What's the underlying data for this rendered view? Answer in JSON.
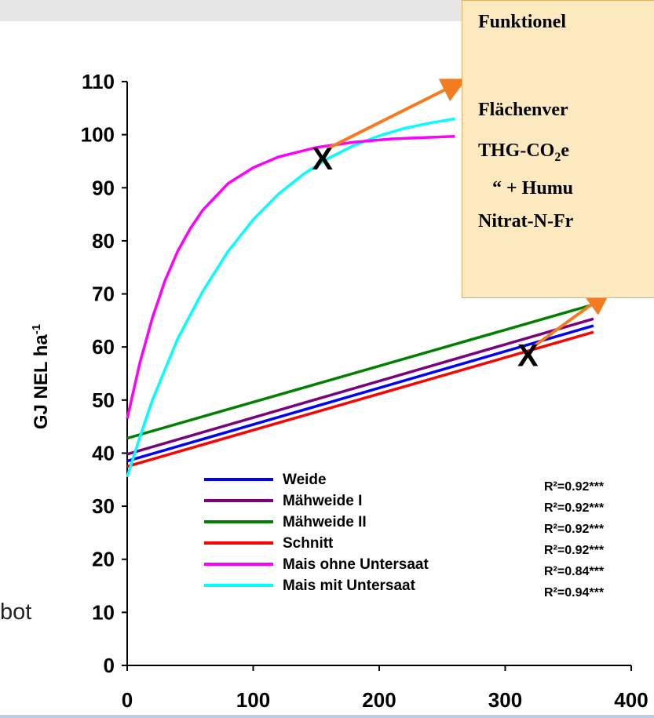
{
  "fragment_text": "bot",
  "info_box": {
    "lines": [
      "Funktionel",
      "Flächenver",
      "THG-CO",
      "2",
      "e",
      "“ + Humu",
      "Nitrat-N-Fr"
    ]
  },
  "markers": [
    "X",
    "X"
  ],
  "chart_data": {
    "type": "line",
    "title": "",
    "xlabel": "",
    "ylabel": "GJ NEL ha",
    "ylabel_sup": "-1",
    "xlim": [
      0,
      400
    ],
    "ylim": [
      0,
      110
    ],
    "x_ticks": [
      0,
      100,
      200,
      300,
      400
    ],
    "y_ticks": [
      0,
      10,
      20,
      30,
      40,
      50,
      60,
      70,
      80,
      90,
      100,
      110
    ],
    "grid": false,
    "legend_position": "bottom-center",
    "series": [
      {
        "name": "Weide",
        "color": "#0000ff",
        "r2": "R²=0.92***",
        "x": [
          0,
          370
        ],
        "y": [
          38.5,
          64
        ]
      },
      {
        "name": "Mähweide I",
        "color": "#7b007b",
        "r2": "R²=0.92***",
        "x": [
          0,
          370
        ],
        "y": [
          39.8,
          65.3
        ]
      },
      {
        "name": "Mähweide II",
        "color": "#007f00",
        "r2": "R²=0.92***",
        "x": [
          0,
          370
        ],
        "y": [
          42.8,
          68
        ]
      },
      {
        "name": "Schnitt",
        "color": "#ff0000",
        "r2": "R²=0.92***",
        "x": [
          0,
          370
        ],
        "y": [
          37.5,
          62.8
        ]
      },
      {
        "name": "Mais ohne Untersaat",
        "color": "#ff00ff",
        "r2": "R²=0.84***",
        "x": [
          0,
          10,
          20,
          30,
          40,
          50,
          60,
          80,
          100,
          120,
          150,
          180,
          210,
          240,
          260
        ],
        "y": [
          46.5,
          57,
          65.5,
          72.5,
          78,
          82.3,
          85.8,
          90.8,
          93.8,
          95.8,
          97.6,
          98.6,
          99.2,
          99.5,
          99.7
        ]
      },
      {
        "name": "Mais mit Untersaat",
        "color": "#00ffff",
        "r2": "R²=0.94***",
        "x": [
          0,
          10,
          20,
          40,
          60,
          80,
          100,
          120,
          140,
          160,
          180,
          200,
          220,
          240,
          260
        ],
        "y": [
          35.5,
          43,
          50,
          61.5,
          70.5,
          78,
          84,
          88.8,
          92.6,
          95.6,
          98,
          99.8,
          101.2,
          102.2,
          103
        ]
      }
    ],
    "arrows": [
      {
        "color": "#f47b20",
        "from": [
          160,
          97.5
        ],
        "to": [
          265,
          110
        ]
      },
      {
        "color": "#f47b20",
        "from": [
          322,
          60
        ],
        "to": [
          380,
          70
        ]
      }
    ],
    "marker_points": [
      [
        155,
        95.5
      ],
      [
        318,
        58.5
      ]
    ]
  }
}
